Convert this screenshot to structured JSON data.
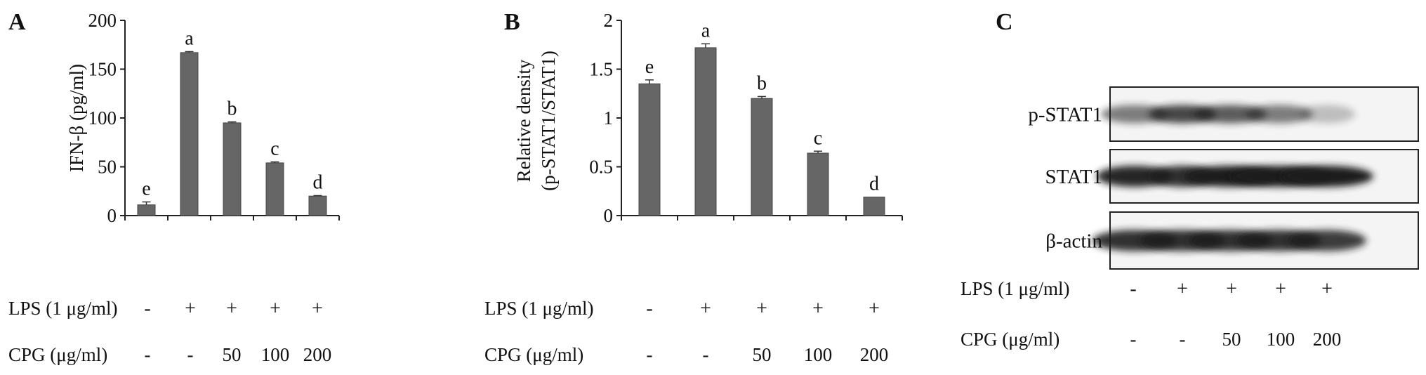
{
  "panels": {
    "A": {
      "letter": "A",
      "ylabel": "IFN-β (pg/ml)"
    },
    "B": {
      "letter": "B",
      "ylabel_line1": "Relative density",
      "ylabel_line2": "(p-STAT1/STAT1)"
    },
    "C": {
      "letter": "C"
    }
  },
  "treatments": {
    "lps_label": "LPS (1 μg/ml)",
    "cpg_label": "CPG (μg/ml)",
    "lps_values": [
      "-",
      "+",
      "+",
      "+",
      "+"
    ],
    "cpg_values": [
      "-",
      "-",
      "50",
      "100",
      "200"
    ]
  },
  "blot": {
    "rows": [
      {
        "label": "p-STAT1",
        "intensities": [
          0.55,
          0.8,
          0.7,
          0.55,
          0.25
        ]
      },
      {
        "label": "STAT1",
        "intensities": [
          0.95,
          0.9,
          1.0,
          1.0,
          1.0
        ]
      },
      {
        "label": "β-actin",
        "intensities": [
          0.9,
          0.9,
          0.9,
          0.9,
          0.85
        ]
      }
    ]
  },
  "colors": {
    "bar": "#666666",
    "axis": "#222222",
    "band": "#1a1a1a"
  },
  "chart_data": [
    {
      "type": "bar",
      "title": "",
      "ylabel": "IFN-β (pg/ml)",
      "ylim": [
        0,
        200
      ],
      "yticks": [
        0,
        50,
        100,
        150,
        200
      ],
      "values": [
        11,
        167,
        95,
        54,
        20
      ],
      "errors": [
        3,
        1,
        1,
        1,
        0.5
      ],
      "letters": [
        "e",
        "a",
        "b",
        "c",
        "d"
      ]
    },
    {
      "type": "bar",
      "title": "",
      "ylabel": "Relative density (p-STAT1/STAT1)",
      "ylim": [
        0,
        2
      ],
      "yticks": [
        0,
        0.5,
        1,
        1.5,
        2
      ],
      "values": [
        1.35,
        1.72,
        1.2,
        0.64,
        0.19
      ],
      "errors": [
        0.04,
        0.04,
        0.02,
        0.02,
        0
      ],
      "letters": [
        "e",
        "a",
        "b",
        "c",
        "d"
      ]
    }
  ]
}
